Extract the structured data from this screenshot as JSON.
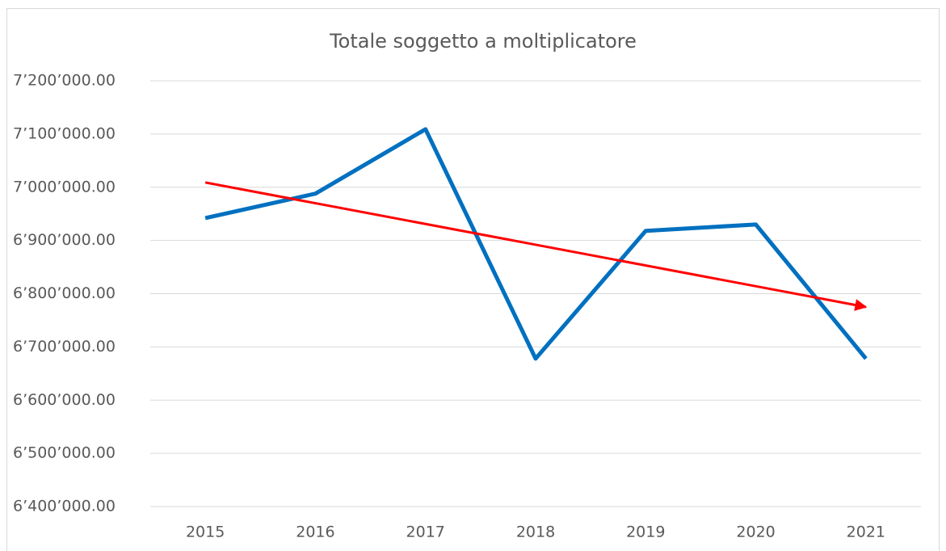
{
  "chart_data": {
    "type": "line",
    "title": "Totale soggetto a moltiplicatore",
    "categories": [
      "2015",
      "2016",
      "2017",
      "2018",
      "2019",
      "2020",
      "2021"
    ],
    "series": [
      {
        "color": "#0070c0",
        "values": [
          6942000,
          6988000,
          7109000,
          6678000,
          6918000,
          6930000,
          6678000
        ]
      }
    ],
    "trendline": {
      "color": "#ff0000",
      "values": [
        7009000,
        6775000
      ]
    },
    "ylim": [
      6400000,
      7200000
    ],
    "yticks": [
      {
        "value": 6400000,
        "label": "6’400’000.00"
      },
      {
        "value": 6500000,
        "label": "6’500’000.00"
      },
      {
        "value": 6600000,
        "label": "6’600’000.00"
      },
      {
        "value": 6700000,
        "label": "6’700’000.00"
      },
      {
        "value": 6800000,
        "label": "6’800’000.00"
      },
      {
        "value": 6900000,
        "label": "6’900’000.00"
      },
      {
        "value": 7000000,
        "label": "7’000’000.00"
      },
      {
        "value": 7100000,
        "label": "7’100’000.00"
      },
      {
        "value": 7200000,
        "label": "7’200’000.00"
      }
    ],
    "grid": true
  }
}
